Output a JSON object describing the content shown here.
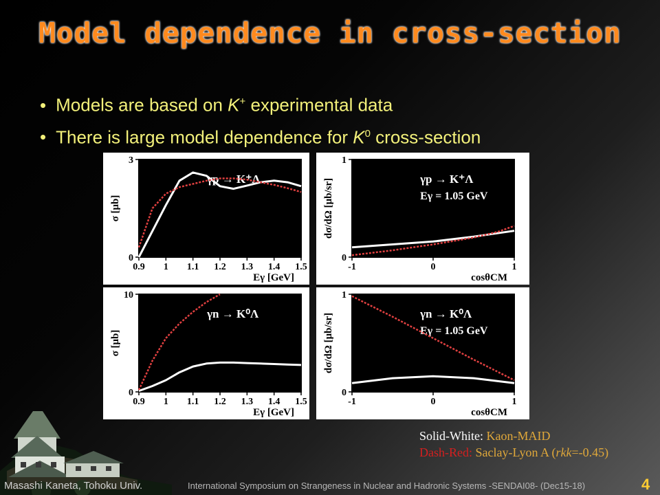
{
  "title": "Model dependence in cross-section",
  "bullets": [
    {
      "pre": "Models are based on ",
      "sym": "K",
      "sup": "+",
      "post": " experimental data"
    },
    {
      "pre": "There is large model dependence for ",
      "sym": "K",
      "sup": "0",
      "post": " cross-section"
    }
  ],
  "legend": {
    "solid_key": "Solid-White",
    "solid_sep": ": ",
    "solid_value": "Kaon-MAID",
    "dash_key": "Dash-Red:",
    "dash_value_pre": " Saclay-Lyon A (",
    "dash_value_em": "rkk",
    "dash_value_post": "=-0.45)"
  },
  "footer": {
    "author": "Masashi Kaneta, Tohoku Univ.",
    "conference": "International Symposium on Strangeness in Nuclear and Hadronic Systems -SENDAI08- (Dec15-18)",
    "page": "4"
  },
  "colors": {
    "solid": "#ffffff",
    "dash": "#e04040",
    "bullet_text": "#f2f07a",
    "title": "#ff8a1e"
  },
  "chart_data": [
    {
      "type": "line",
      "reaction": "γp → K⁺Λ",
      "xlabel": "Eγ [GeV]",
      "ylabel": "σ [μb]",
      "xlim": [
        0.9,
        1.5
      ],
      "ylim": [
        0,
        3
      ],
      "xticks": [
        "0.9",
        "1",
        "1.1",
        "1.2",
        "1.3",
        "1.4",
        "1.5"
      ],
      "yticks": [
        {
          "v": 0,
          "t": "0"
        },
        {
          "v": 3,
          "t": "3"
        }
      ],
      "series": [
        {
          "style": "solid",
          "x": [
            0.9,
            0.95,
            1.0,
            1.05,
            1.1,
            1.15,
            1.2,
            1.25,
            1.3,
            1.35,
            1.4,
            1.45,
            1.5
          ],
          "y": [
            0.0,
            0.8,
            1.6,
            2.35,
            2.6,
            2.5,
            2.18,
            2.1,
            2.2,
            2.3,
            2.35,
            2.3,
            2.18
          ]
        },
        {
          "style": "dashed",
          "x": [
            0.9,
            0.95,
            1.0,
            1.05,
            1.1,
            1.15,
            1.2,
            1.25,
            1.3,
            1.35,
            1.4,
            1.45,
            1.5
          ],
          "y": [
            0.3,
            1.5,
            1.95,
            2.15,
            2.25,
            2.35,
            2.42,
            2.42,
            2.38,
            2.3,
            2.22,
            2.12,
            2.0
          ]
        }
      ]
    },
    {
      "type": "line",
      "reaction": "γp → K⁺Λ",
      "energy": "Eγ = 1.05 GeV",
      "xlabel": "cosθCM",
      "ylabel": "dσ/dΩ [μb/sr]",
      "xlim": [
        -1,
        1
      ],
      "ylim": [
        0,
        1
      ],
      "xticks": [
        "-1",
        "0",
        "1"
      ],
      "yticks": [
        {
          "v": 0,
          "t": "0"
        },
        {
          "v": 1,
          "t": "1"
        }
      ],
      "series": [
        {
          "style": "solid",
          "x": [
            -1,
            -0.5,
            0,
            0.5,
            1
          ],
          "y": [
            0.1,
            0.13,
            0.16,
            0.21,
            0.27
          ]
        },
        {
          "style": "dashed",
          "x": [
            -1,
            -0.5,
            0,
            0.5,
            0.8,
            1
          ],
          "y": [
            0.02,
            0.07,
            0.13,
            0.2,
            0.26,
            0.32
          ]
        }
      ]
    },
    {
      "type": "line",
      "reaction": "γn → K⁰Λ",
      "xlabel": "Eγ [GeV]",
      "ylabel": "σ [μb]",
      "xlim": [
        0.9,
        1.5
      ],
      "ylim": [
        0,
        10
      ],
      "xticks": [
        "0.9",
        "1",
        "1.1",
        "1.2",
        "1.3",
        "1.4",
        "1.5"
      ],
      "yticks": [
        {
          "v": 0,
          "t": "0"
        },
        {
          "v": 10,
          "t": "10"
        }
      ],
      "series": [
        {
          "style": "solid",
          "x": [
            0.9,
            0.95,
            1.0,
            1.05,
            1.1,
            1.15,
            1.2,
            1.25,
            1.3,
            1.35,
            1.4,
            1.45,
            1.5
          ],
          "y": [
            0.1,
            0.6,
            1.2,
            2.0,
            2.6,
            2.9,
            3.0,
            3.0,
            2.95,
            2.9,
            2.85,
            2.8,
            2.75
          ]
        },
        {
          "style": "dashed",
          "x": [
            0.9,
            0.95,
            1.0,
            1.05,
            1.1,
            1.15,
            1.2
          ],
          "y": [
            0.2,
            3.2,
            5.5,
            7.0,
            8.2,
            9.2,
            10.0
          ]
        }
      ]
    },
    {
      "type": "line",
      "reaction": "γn → K⁰Λ",
      "energy": "Eγ = 1.05 GeV",
      "xlabel": "cosθCM",
      "ylabel": "dσ/dΩ [μb/sr]",
      "xlim": [
        -1,
        1
      ],
      "ylim": [
        0,
        1
      ],
      "xticks": [
        "-1",
        "0",
        "1"
      ],
      "yticks": [
        {
          "v": 0,
          "t": "0"
        },
        {
          "v": 1,
          "t": "1"
        }
      ],
      "series": [
        {
          "style": "solid",
          "x": [
            -1,
            -0.5,
            0,
            0.5,
            1
          ],
          "y": [
            0.09,
            0.14,
            0.16,
            0.14,
            0.09
          ]
        },
        {
          "style": "dashed",
          "x": [
            -1,
            -0.5,
            0,
            0.5,
            1
          ],
          "y": [
            0.98,
            0.77,
            0.55,
            0.33,
            0.12
          ]
        }
      ]
    }
  ]
}
